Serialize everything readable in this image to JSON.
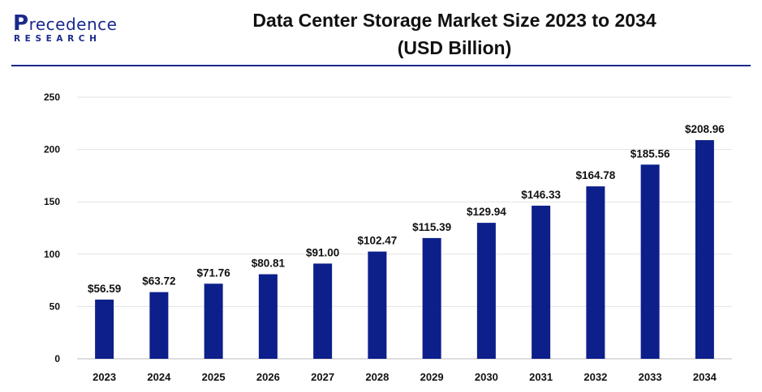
{
  "brand": {
    "name": "Precedence",
    "sub": "RESEARCH"
  },
  "header": {
    "title_line1": "Data Center Storage Market Size 2023 to 2034",
    "title_line2": "(USD Billion)"
  },
  "colors": {
    "bar": "#0d1f8a",
    "grid": "#e3e3e3",
    "axis": "#bdbdbd",
    "brand": "#1a2a8c"
  },
  "chart_data": {
    "type": "bar",
    "title": "Data Center Storage Market Size 2023 to 2034 (USD Billion)",
    "xlabel": "",
    "ylabel": "",
    "ylim": [
      0,
      250
    ],
    "yticks": [
      0,
      50,
      100,
      150,
      200,
      250
    ],
    "grid": true,
    "categories": [
      "2023",
      "2024",
      "2025",
      "2026",
      "2027",
      "2028",
      "2029",
      "2030",
      "2031",
      "2032",
      "2033",
      "2034"
    ],
    "values": [
      56.59,
      63.72,
      71.76,
      80.81,
      91.0,
      102.47,
      115.39,
      129.94,
      146.33,
      164.78,
      185.56,
      208.96
    ],
    "data_labels": [
      "$56.59",
      "$63.72",
      "$71.76",
      "$80.81",
      "$91.00",
      "$102.47",
      "$115.39",
      "$129.94",
      "$146.33",
      "$164.78",
      "$185.56",
      "$208.96"
    ]
  }
}
